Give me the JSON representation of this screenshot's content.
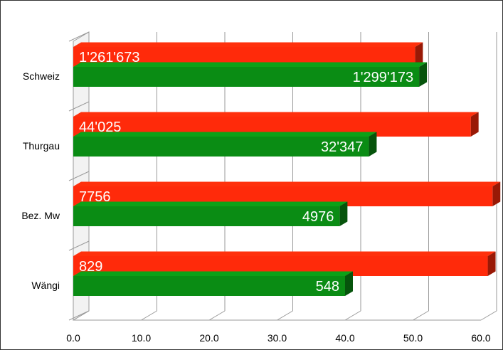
{
  "chart_data": {
    "type": "bar",
    "orientation": "horizontal",
    "categories": [
      "Schweiz",
      "Thurgau",
      "Bez. Mw",
      "Wängi"
    ],
    "series": [
      {
        "color": "#ff2a0a",
        "values": [
          50.3,
          58.5,
          61.7,
          61.0
        ],
        "labels": [
          "1'261'673",
          "44'025",
          "7756",
          "829"
        ]
      },
      {
        "color": "#0a8c14",
        "values": [
          50.9,
          43.5,
          39.2,
          40.0
        ],
        "labels": [
          "1'299'173",
          "32'347",
          "4976",
          "548"
        ]
      }
    ],
    "xlim": [
      0,
      60
    ],
    "xticks": [
      "0.0",
      "10.0",
      "20.0",
      "30.0",
      "40.0",
      "50.0",
      "60.0"
    ],
    "grid": true
  }
}
